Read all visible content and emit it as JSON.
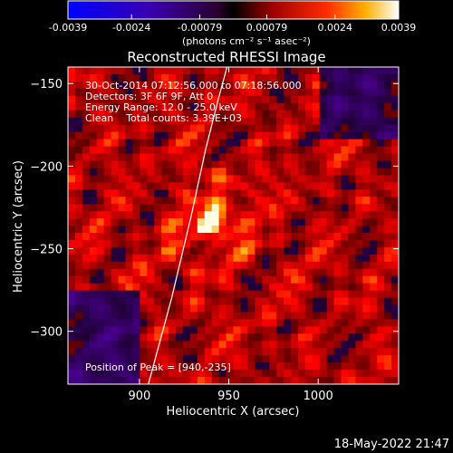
{
  "colorbar": {
    "ticks": [
      {
        "value": -0.0039,
        "label": "-0.0039"
      },
      {
        "value": -0.0024,
        "label": "-0.0024"
      },
      {
        "value": -0.00079,
        "label": "-0.00079"
      },
      {
        "value": 0.00079,
        "label": "0.00079"
      },
      {
        "value": 0.0024,
        "label": "0.0024"
      },
      {
        "value": 0.0039,
        "label": "0.0039"
      }
    ],
    "units_label": "(photons cm⁻² s⁻¹ asec⁻²)",
    "range": [
      -0.0039,
      0.0039
    ]
  },
  "chart_data": {
    "type": "heatmap",
    "title": "Reconstructed RHESSI Image",
    "xlabel": "Heliocentric X (arcsec)",
    "ylabel": "Heliocentric Y (arcsec)",
    "xlim": [
      860,
      1045
    ],
    "ylim": [
      -332,
      -140
    ],
    "x_ticks": [
      {
        "value": 900,
        "label": "900"
      },
      {
        "value": 950,
        "label": "950"
      },
      {
        "value": 1000,
        "label": "1000"
      }
    ],
    "y_ticks": [
      {
        "value": -150,
        "label": "−150"
      },
      {
        "value": -200,
        "label": "−200"
      },
      {
        "value": -250,
        "label": "−250"
      },
      {
        "value": -300,
        "label": "−300"
      }
    ],
    "info_lines": [
      "30-Oct-2014 07:12:56.000 to 07:18:56.000",
      "Detectors: 3F 6F 9F, Att 0",
      "Energy Range: 12.0 - 25.0 keV",
      "Clean    Total counts: 3.39E+03"
    ],
    "peak_label": "Position of Peak = [940,-235]",
    "peak": [
      940,
      -235
    ],
    "limb_curve": [
      [
        905,
        -332
      ],
      [
        918,
        -280
      ],
      [
        929,
        -230
      ],
      [
        937,
        -190
      ],
      [
        944,
        -160
      ],
      [
        949,
        -140
      ]
    ]
  },
  "footer": {
    "timestamp": "18-May-2022 21:47"
  }
}
